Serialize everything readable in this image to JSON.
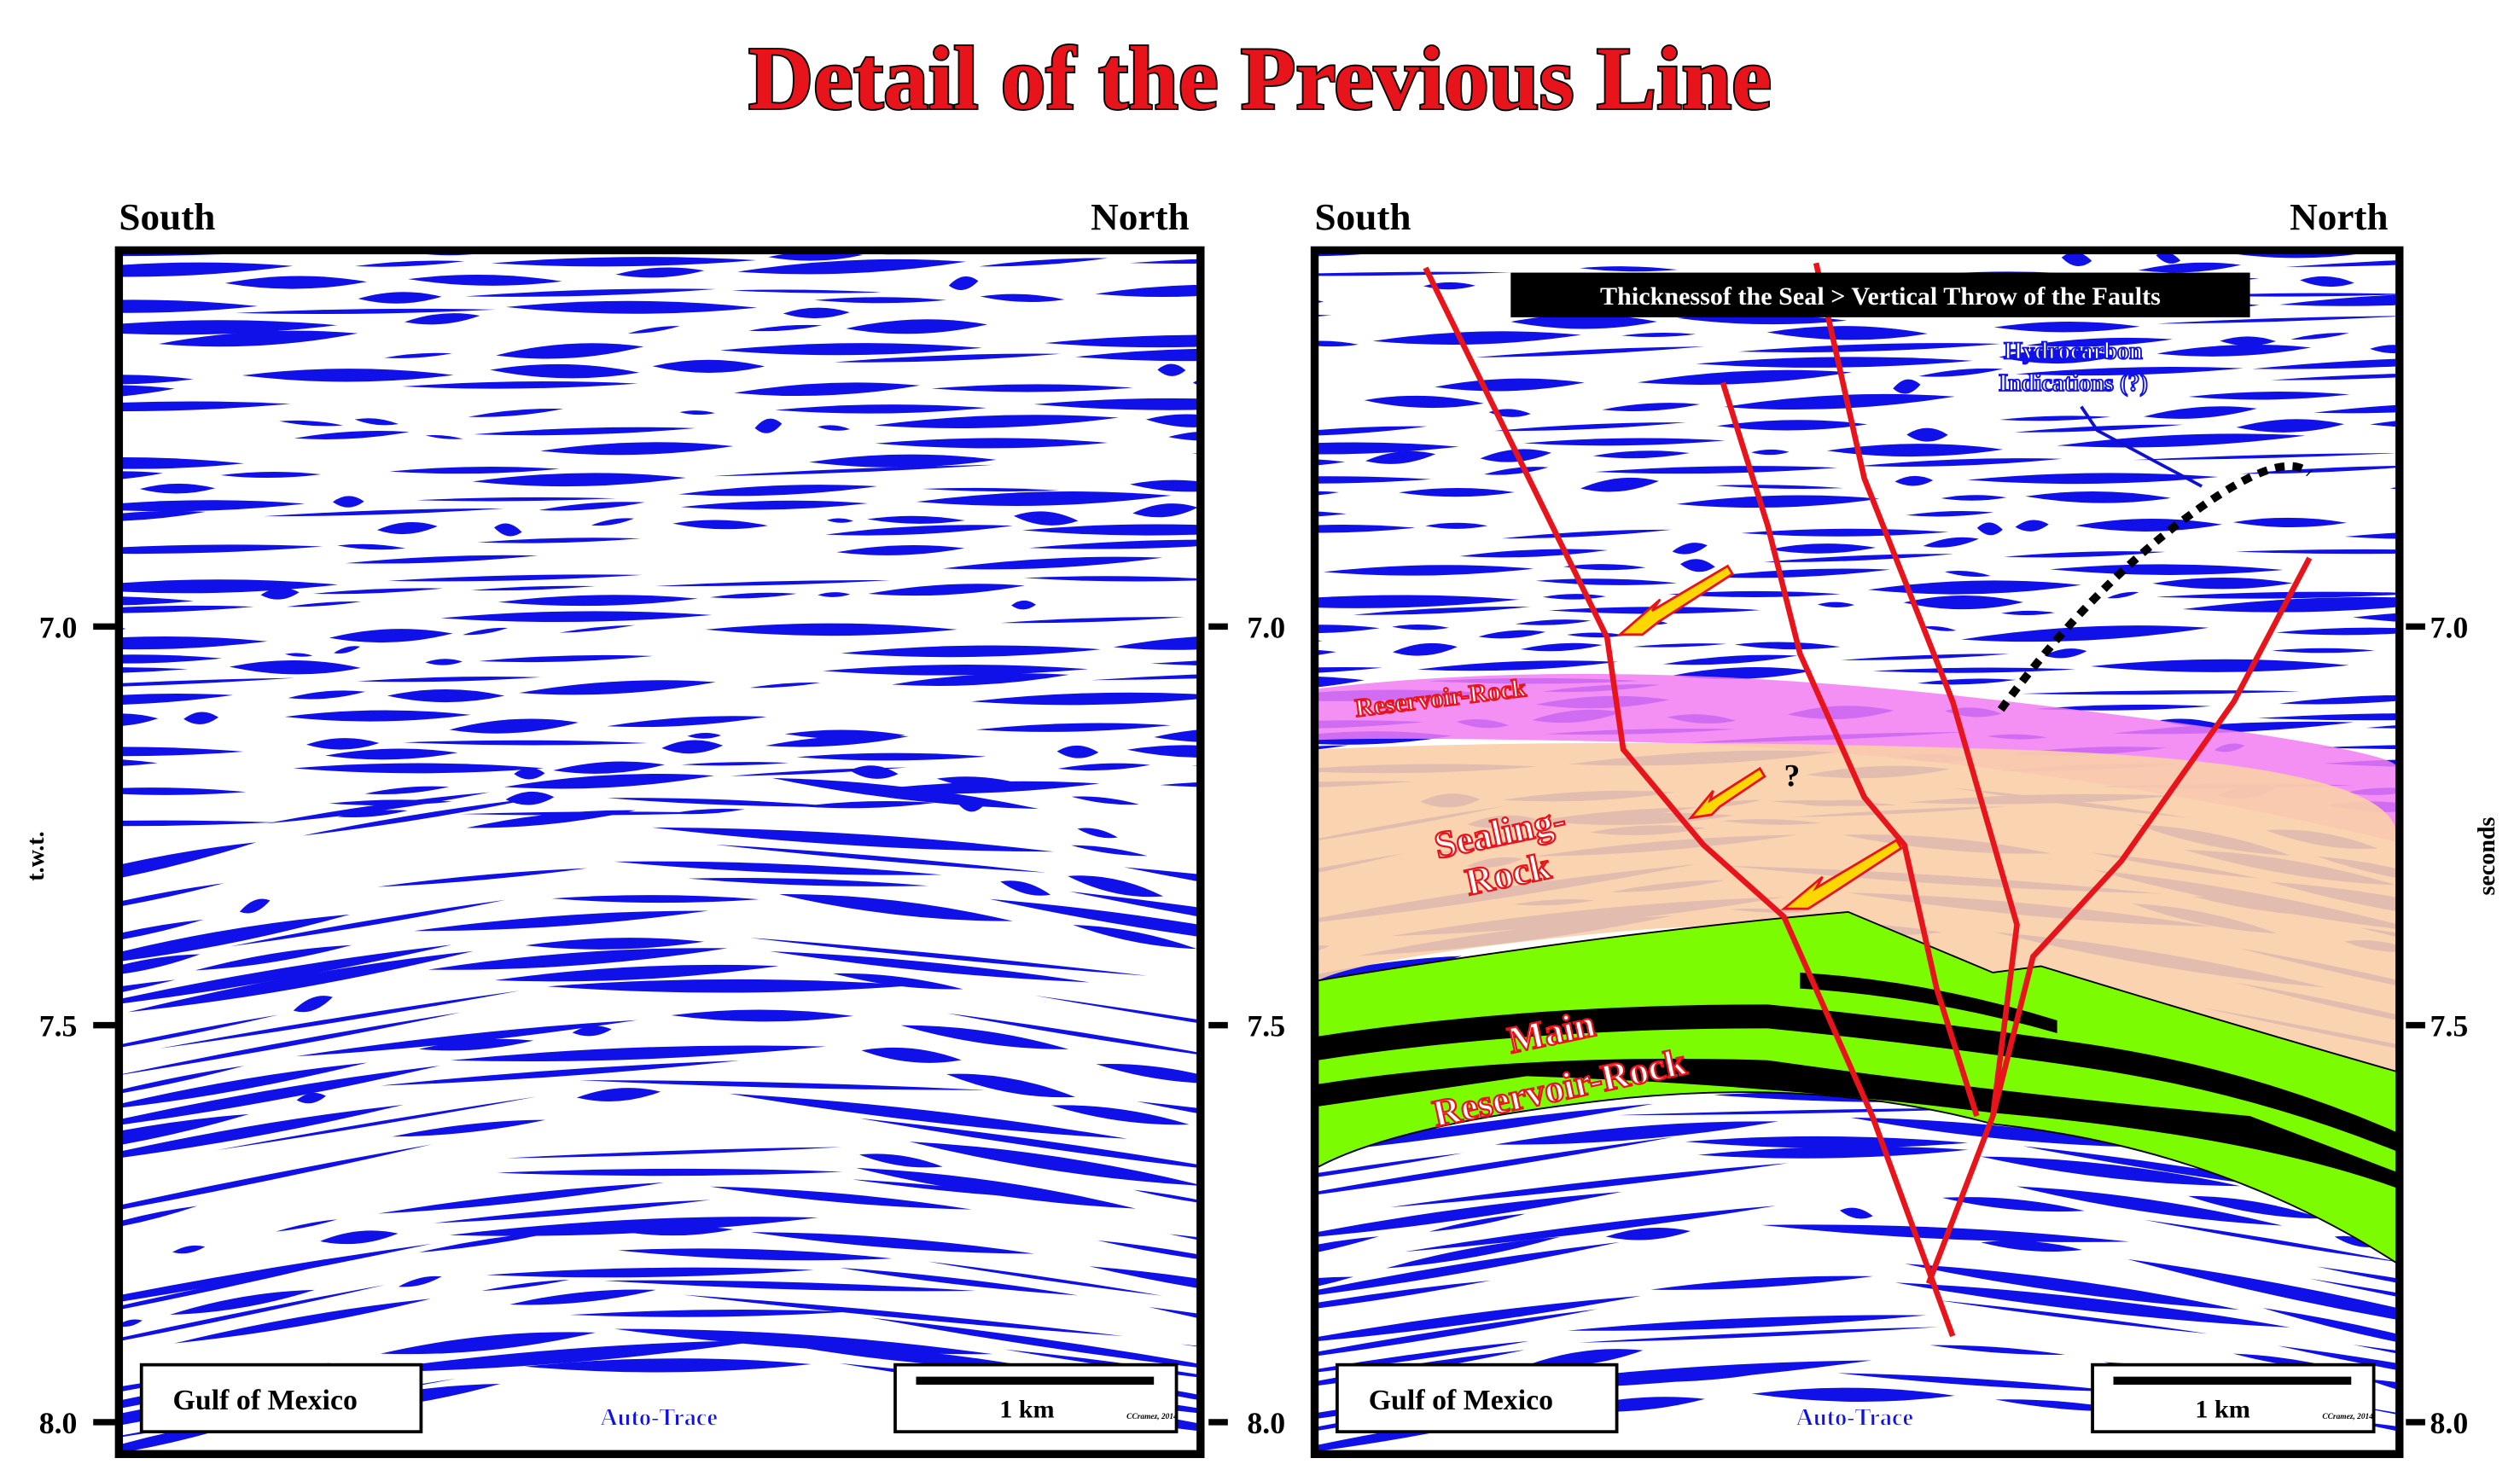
{
  "title": "Detail of the Previous Line",
  "axes": {
    "left_title": "t.w.t.",
    "right_title": "seconds",
    "ticks": [
      "7.0",
      "7.5",
      "8.0"
    ]
  },
  "panels": [
    {
      "left_label": "South",
      "right_label": "North",
      "location": "Gulf of Mexico",
      "method": "Auto-Trace",
      "scale_bar": "1 km",
      "credit": "CCramez, 2014"
    },
    {
      "left_label": "South",
      "right_label": "North",
      "location": "Gulf of Mexico",
      "method": "Auto-Trace",
      "scale_bar": "1 km",
      "credit": "CCramez, 2014",
      "annotations": {
        "banner": "Thicknessof the Seal > Vertical Throw of the Faults",
        "hydrocarbon_1": "Hydrocarbon",
        "hydrocarbon_2": "Indications (?)",
        "reservoir": "Reservoir-Rock",
        "sealing_1": "Sealing-",
        "sealing_2": "Rock",
        "main_1": "Main",
        "main_2": "Reservoir-Rock",
        "question": "?"
      }
    }
  ]
}
